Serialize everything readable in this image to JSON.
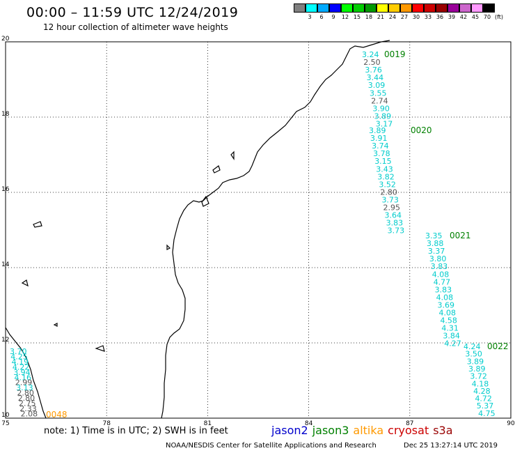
{
  "header": {
    "title": "00:00 – 11:59 UTC 12/24/2019",
    "subtitle": "12 hour collection of altimeter wave heights"
  },
  "colorbar": {
    "colors": [
      "#808080",
      "#00ffff",
      "#00aaff",
      "#0000ff",
      "#00ff00",
      "#00cc00",
      "#009900",
      "#ffff00",
      "#ffcc00",
      "#ff9900",
      "#ff0000",
      "#cc0000",
      "#990000",
      "#990099",
      "#cc66cc",
      "#ff99ff",
      "#000000"
    ],
    "labels": [
      "3",
      "6",
      "9",
      "12",
      "15",
      "18",
      "21",
      "24",
      "27",
      "30",
      "33",
      "36",
      "39",
      "42",
      "45",
      "70",
      "(ft)"
    ]
  },
  "map": {
    "lon_range": [
      75,
      90
    ],
    "lat_range": [
      10,
      20
    ],
    "x_ticks": [
      "75",
      "78",
      "81",
      "84",
      "87",
      "90"
    ],
    "y_ticks": [
      "10",
      "12",
      "14",
      "16",
      "18",
      "20"
    ],
    "grid": "dotted",
    "coastline_color": "#000000"
  },
  "tracks": [
    {
      "id": "0019",
      "color": "#008000",
      "values": [
        {
          "v": "3.24",
          "c": "cyan"
        },
        {
          "v": "2.50",
          "c": "gray"
        },
        {
          "v": "3.76",
          "c": "cyan"
        },
        {
          "v": "3.44",
          "c": "cyan"
        },
        {
          "v": "3.09",
          "c": "cyan"
        },
        {
          "v": "3.55",
          "c": "cyan"
        },
        {
          "v": "2.74",
          "c": "gray"
        },
        {
          "v": "3.90",
          "c": "cyan"
        },
        {
          "v": "3.89",
          "c": "cyan"
        },
        {
          "v": "3.17",
          "c": "cyan"
        }
      ]
    },
    {
      "id": "0020",
      "color": "#008000",
      "values": [
        {
          "v": "3.89",
          "c": "cyan"
        },
        {
          "v": "3.91",
          "c": "cyan"
        },
        {
          "v": "3.74",
          "c": "cyan"
        },
        {
          "v": "3.78",
          "c": "cyan"
        },
        {
          "v": "3.15",
          "c": "cyan"
        },
        {
          "v": "3.43",
          "c": "cyan"
        },
        {
          "v": "3.82",
          "c": "cyan"
        },
        {
          "v": "3.52",
          "c": "cyan"
        },
        {
          "v": "2.80",
          "c": "gray"
        },
        {
          "v": "3.73",
          "c": "cyan"
        },
        {
          "v": "2.95",
          "c": "gray"
        },
        {
          "v": "3.64",
          "c": "cyan"
        },
        {
          "v": "3.83",
          "c": "cyan"
        },
        {
          "v": "3.73",
          "c": "cyan"
        }
      ]
    },
    {
      "id": "0021",
      "color": "#008000",
      "values": [
        {
          "v": "3.35",
          "c": "cyan"
        },
        {
          "v": "3.88",
          "c": "cyan"
        },
        {
          "v": "3.37",
          "c": "cyan"
        },
        {
          "v": "3.80",
          "c": "cyan"
        },
        {
          "v": "3.83",
          "c": "cyan"
        },
        {
          "v": "4.08",
          "c": "cyan"
        },
        {
          "v": "4.77",
          "c": "cyan"
        },
        {
          "v": "3.83",
          "c": "cyan"
        },
        {
          "v": "4.08",
          "c": "cyan"
        },
        {
          "v": "3.69",
          "c": "cyan"
        },
        {
          "v": "4.08",
          "c": "cyan"
        },
        {
          "v": "4.58",
          "c": "cyan"
        },
        {
          "v": "4.31",
          "c": "cyan"
        },
        {
          "v": "3.84",
          "c": "cyan"
        },
        {
          "v": "4.27",
          "c": "cyan"
        }
      ]
    },
    {
      "id": "0022",
      "color": "#008000",
      "values": [
        {
          "v": "4.24",
          "c": "cyan"
        },
        {
          "v": "3.50",
          "c": "cyan"
        },
        {
          "v": "3.89",
          "c": "cyan"
        },
        {
          "v": "3.89",
          "c": "cyan"
        },
        {
          "v": "3.72",
          "c": "cyan"
        },
        {
          "v": "4.18",
          "c": "cyan"
        },
        {
          "v": "4.28",
          "c": "cyan"
        },
        {
          "v": "4.72",
          "c": "cyan"
        },
        {
          "v": "5.37",
          "c": "cyan"
        },
        {
          "v": "4.75",
          "c": "cyan"
        }
      ]
    },
    {
      "id": "0048",
      "color": "#ff9900",
      "values": [
        {
          "v": "3.70",
          "c": "cyan"
        },
        {
          "v": "4.25",
          "c": "cyan"
        },
        {
          "v": "4.19",
          "c": "cyan"
        },
        {
          "v": "4.22",
          "c": "cyan"
        },
        {
          "v": "3.94",
          "c": "cyan"
        },
        {
          "v": "4.16",
          "c": "cyan"
        },
        {
          "v": "2.99",
          "c": "gray"
        },
        {
          "v": "3.13",
          "c": "cyan"
        },
        {
          "v": "2.80",
          "c": "gray"
        },
        {
          "v": "2.80",
          "c": "gray"
        },
        {
          "v": "2.75",
          "c": "gray"
        },
        {
          "v": "2.33",
          "c": "gray"
        },
        {
          "v": "2.08",
          "c": "gray"
        }
      ]
    }
  ],
  "footer": {
    "note": "note: 1) Time is in UTC; 2) SWH is in feet",
    "satellites": [
      {
        "name": "jason2",
        "color": "#0000cc"
      },
      {
        "name": "jason3",
        "color": "#008000"
      },
      {
        "name": "altika",
        "color": "#ff9900"
      },
      {
        "name": "cryosat",
        "color": "#cc0000"
      },
      {
        "name": "s3a",
        "color": "#990000"
      }
    ],
    "credit": "NOAA/NESDIS Center for Satellite Applications and Research",
    "timestamp": "Dec 25 13:27:14 UTC 2019"
  }
}
